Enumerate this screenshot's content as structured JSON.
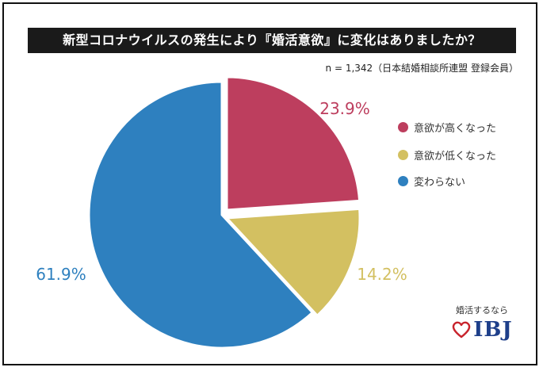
{
  "title": "新型コロナウイルスの発生により『婚活意欲』に変化はありましたか？",
  "note": "n = 1,342（日本結婚相談所連盟 登録会員）",
  "brand": {
    "tagline": "婚活するなら",
    "name": "IBJ",
    "heart_color": "#c8232c",
    "name_color": "#1e3f8a",
    "icon": "heart-icon"
  },
  "chart_data": {
    "type": "pie",
    "title": "新型コロナウイルスの発生により『婚活意欲』に変化はありましたか？",
    "categories": [
      "意欲が高くなった",
      "意欲が低くなった",
      "変わらない"
    ],
    "values": [
      23.9,
      14.2,
      61.9
    ],
    "value_labels": [
      "23.9%",
      "14.2%",
      "61.9%"
    ],
    "colors": [
      "#bd3e5e",
      "#d3c061",
      "#2e80bf"
    ],
    "legend_placement": "right",
    "start_angle": "12 o'clock, clockwise"
  }
}
